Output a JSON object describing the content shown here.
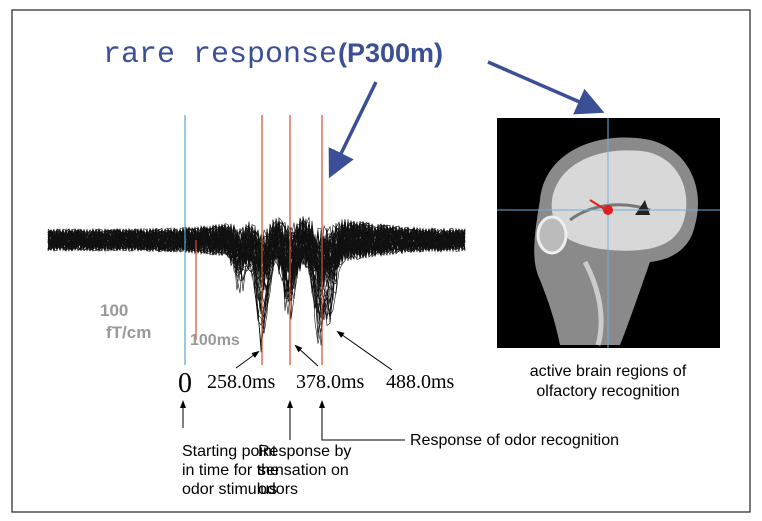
{
  "title": {
    "text": "rare response",
    "highlight": "(P300m)"
  },
  "scale": {
    "amplitude_value": "100",
    "amplitude_unit": "fT/cm",
    "time": "100ms"
  },
  "markers": [
    "0",
    "258.0ms",
    "378.0ms",
    "488.0ms"
  ],
  "annotations": {
    "start": [
      "Starting point",
      "in time for the",
      "odor stimulus"
    ],
    "sensation": [
      "Response by",
      "sensation on",
      "odors"
    ],
    "recognition": [
      "Response of odor recognition"
    ]
  },
  "brain_caption": [
    "active brain regions of",
    "olfactory recognition"
  ]
}
